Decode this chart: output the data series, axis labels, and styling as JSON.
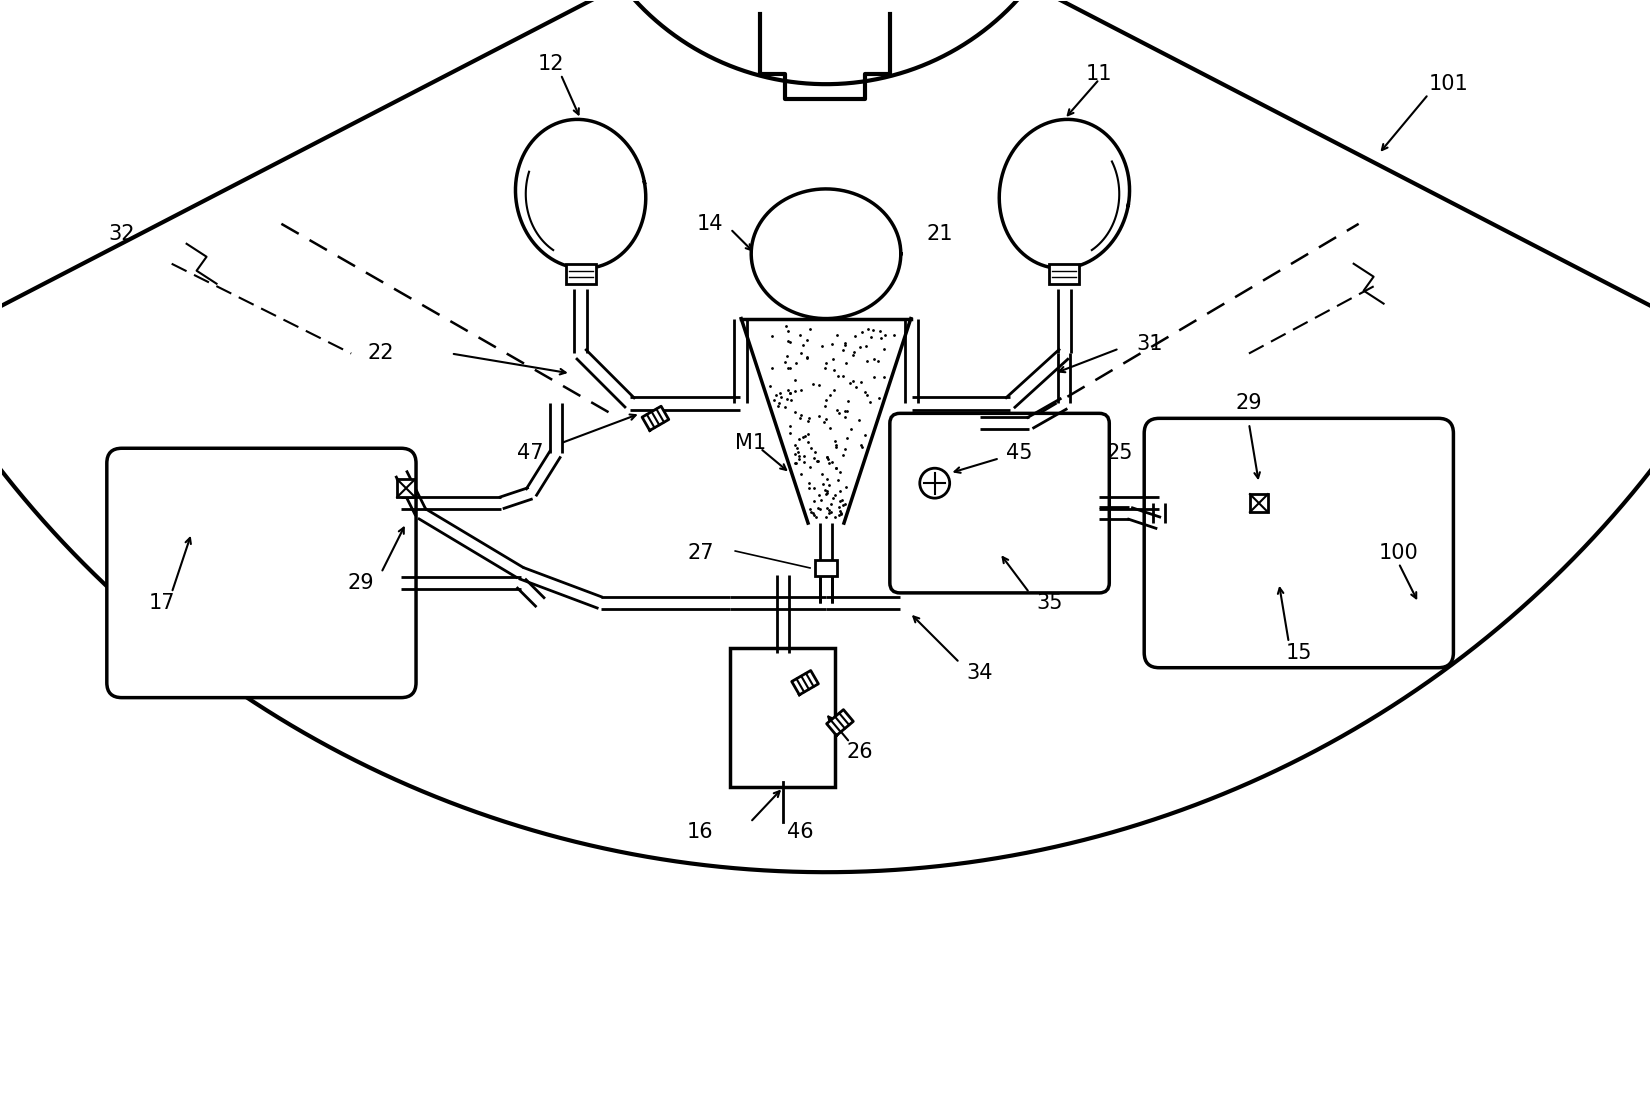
{
  "background_color": "#ffffff",
  "line_color": "#000000",
  "lw_thick": 3.0,
  "lw_med": 2.5,
  "lw_thin": 1.5,
  "figsize": [
    16.52,
    11.03
  ],
  "dpi": 100
}
